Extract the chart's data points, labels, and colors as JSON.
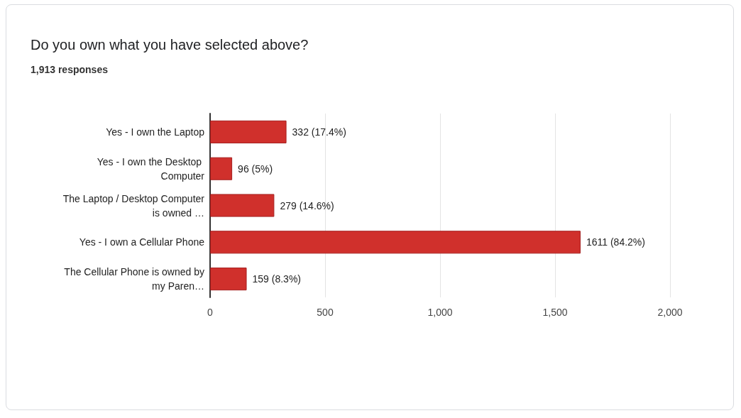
{
  "chart_data": {
    "type": "bar",
    "orientation": "horizontal",
    "title": "Do you own what you have selected above?",
    "subtitle": "1,913 responses",
    "categories": [
      "Yes - I own the Laptop",
      "Yes - I own the Desktop Computer",
      "The Laptop / Desktop Computer is owned …",
      "Yes - I own a Cellular Phone",
      "The Cellular Phone is owned by my Paren…"
    ],
    "values": [
      332,
      96,
      279,
      1611,
      159
    ],
    "value_labels": [
      "332 (17.4%)",
      "96 (5%)",
      "279 (14.6%)",
      "1611 (84.2%)",
      "159 (8.3%)"
    ],
    "color": "#d0302c",
    "xlim": [
      0,
      2000
    ],
    "xticks": [
      {
        "value": 0,
        "label": "0"
      },
      {
        "value": 500,
        "label": "500"
      },
      {
        "value": 1000,
        "label": "1,000"
      },
      {
        "value": 1500,
        "label": "1,500"
      },
      {
        "value": 2000,
        "label": "2,000"
      }
    ],
    "grid": "x"
  }
}
